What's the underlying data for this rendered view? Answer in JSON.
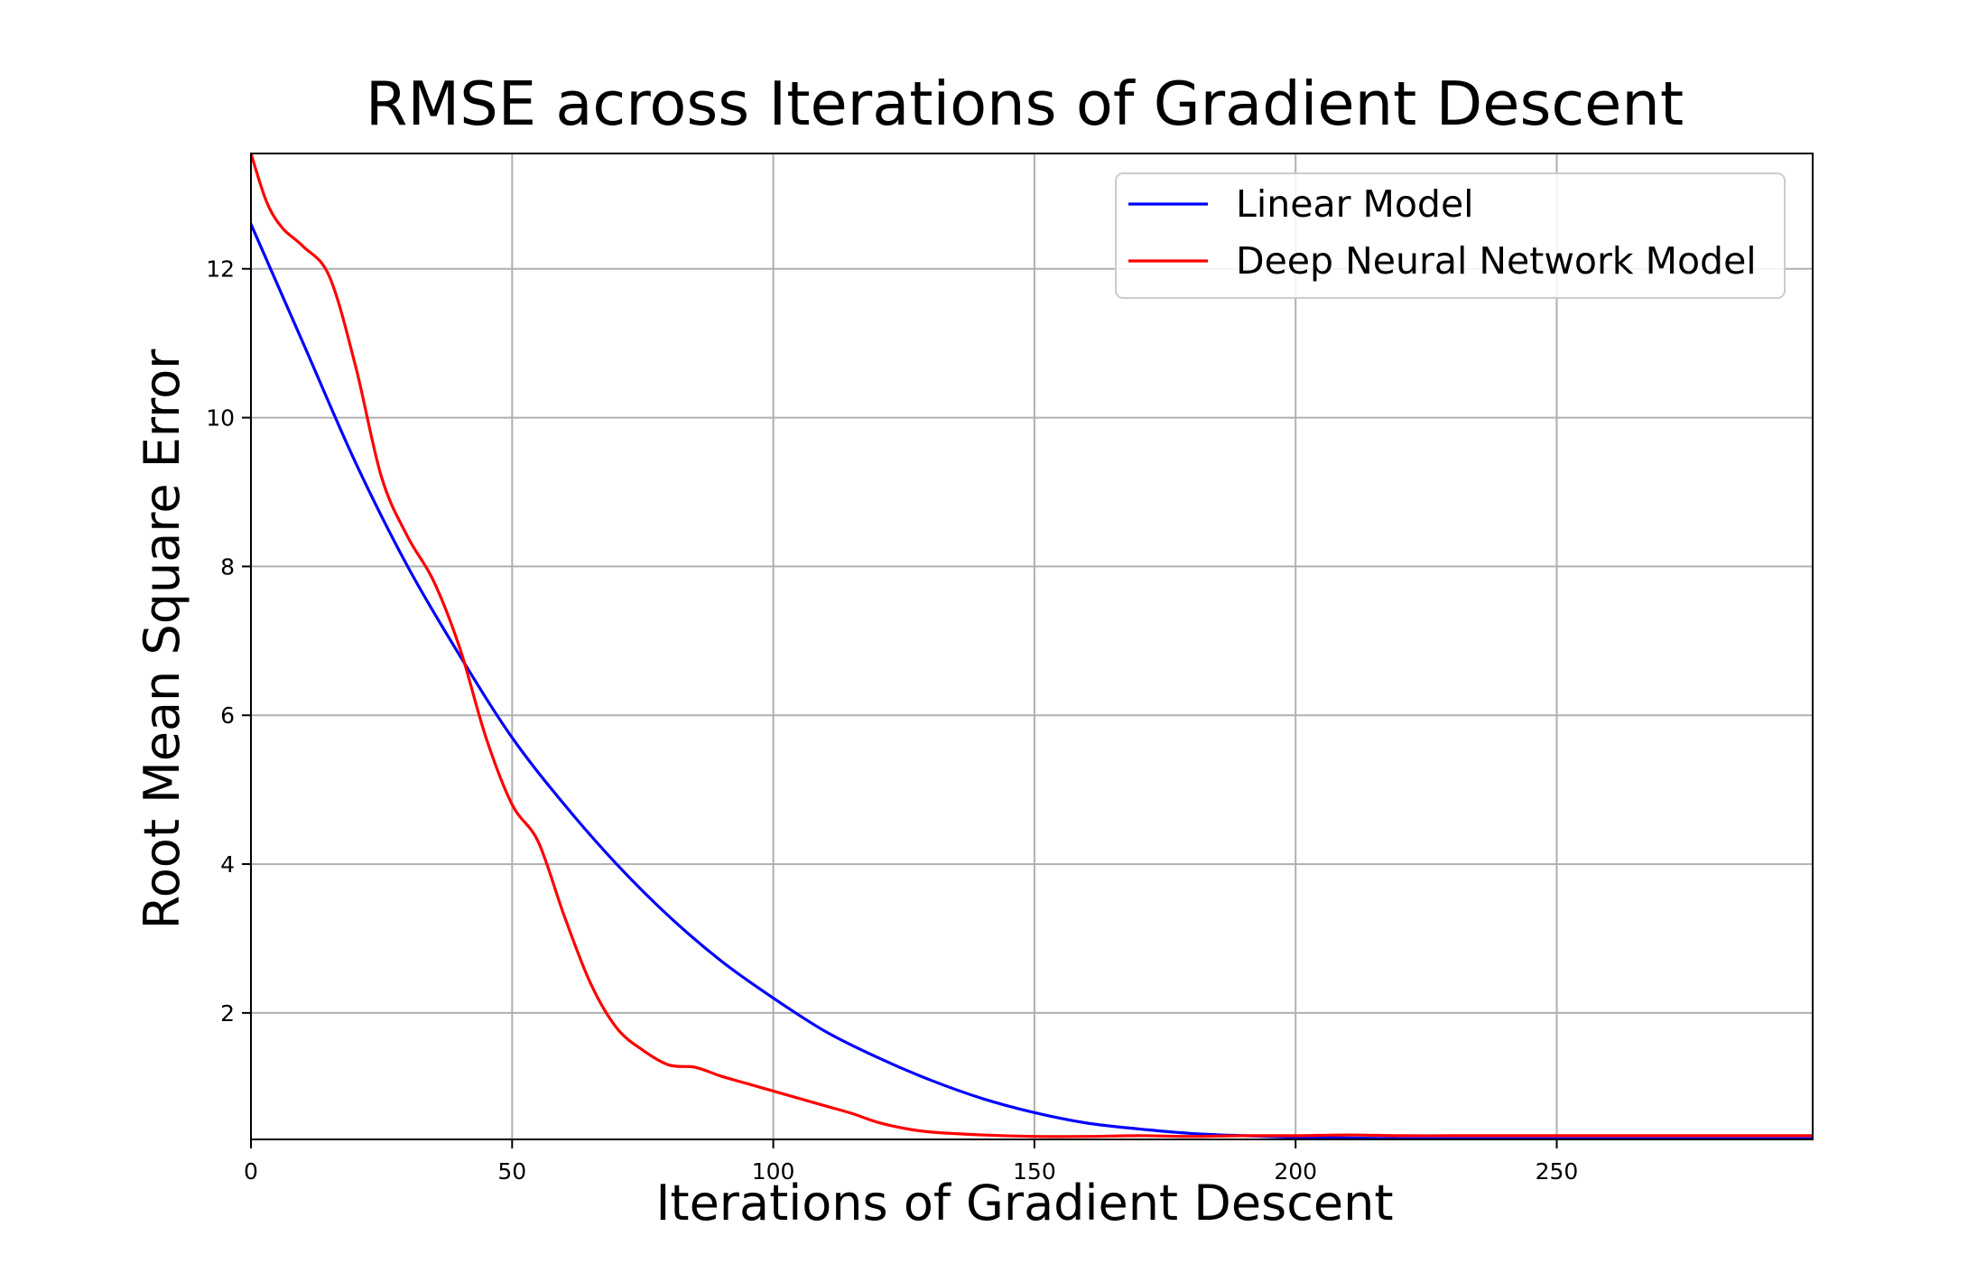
{
  "chart_data": {
    "type": "line",
    "title": "RMSE across Iterations of Gradient Descent",
    "xlabel": "Iterations of Gradient Descent",
    "ylabel": "Root Mean Square Error",
    "xlim": [
      0,
      299
    ],
    "ylim": [
      0.3,
      13.55
    ],
    "xticks": [
      0,
      50,
      100,
      150,
      200,
      250
    ],
    "yticks": [
      2,
      4,
      6,
      8,
      10,
      12
    ],
    "grid": true,
    "legend_position": "top-right",
    "series": [
      {
        "name": "Linear Model",
        "color": "#0000ff",
        "x": [
          0,
          10,
          20,
          30,
          40,
          50,
          60,
          70,
          80,
          90,
          100,
          110,
          120,
          130,
          140,
          150,
          160,
          170,
          180,
          190,
          200,
          210,
          220,
          230,
          240,
          250,
          260,
          270,
          280,
          290,
          299
        ],
        "y": [
          12.6,
          11.0,
          9.4,
          8.0,
          6.8,
          5.7,
          4.8,
          4.0,
          3.3,
          2.7,
          2.2,
          1.75,
          1.4,
          1.1,
          0.85,
          0.66,
          0.52,
          0.44,
          0.38,
          0.35,
          0.33,
          0.32,
          0.31,
          0.31,
          0.31,
          0.31,
          0.31,
          0.31,
          0.31,
          0.31,
          0.31
        ]
      },
      {
        "name": "Deep Neural Network Model",
        "color": "#ff0000",
        "x": [
          0,
          3,
          6,
          10,
          15,
          20,
          25,
          30,
          35,
          40,
          45,
          50,
          55,
          60,
          65,
          70,
          75,
          80,
          85,
          90,
          95,
          100,
          105,
          110,
          115,
          120,
          125,
          130,
          140,
          150,
          160,
          170,
          180,
          190,
          200,
          210,
          220,
          230,
          240,
          250,
          260,
          270,
          280,
          290,
          299
        ],
        "y": [
          13.55,
          12.9,
          12.55,
          12.3,
          11.9,
          10.7,
          9.2,
          8.4,
          7.8,
          6.9,
          5.7,
          4.8,
          4.3,
          3.3,
          2.4,
          1.8,
          1.5,
          1.3,
          1.27,
          1.15,
          1.05,
          0.95,
          0.85,
          0.75,
          0.65,
          0.53,
          0.45,
          0.4,
          0.36,
          0.34,
          0.34,
          0.35,
          0.34,
          0.35,
          0.35,
          0.36,
          0.35,
          0.35,
          0.35,
          0.35,
          0.35,
          0.35,
          0.35,
          0.35,
          0.35
        ]
      }
    ]
  }
}
